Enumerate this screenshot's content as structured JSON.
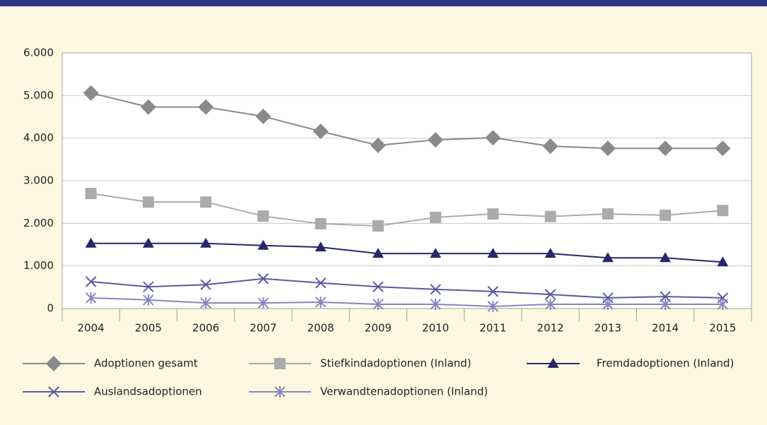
{
  "chart_data": {
    "type": "line",
    "categories": [
      "2004",
      "2005",
      "2006",
      "2007",
      "2008",
      "2009",
      "2010",
      "2011",
      "2012",
      "2013",
      "2014",
      "2015"
    ],
    "series": [
      {
        "name": "Adoptionen gesamt",
        "color": "#8a8a8a",
        "marker": "diamond",
        "values": [
          5060,
          4730,
          4730,
          4510,
          4160,
          3830,
          3960,
          4010,
          3810,
          3760,
          3760,
          3760
        ]
      },
      {
        "name": "Stiefkindadoptionen (Inland)",
        "color": "#ababab",
        "marker": "square",
        "values": [
          2700,
          2500,
          2500,
          2170,
          1990,
          1940,
          2140,
          2220,
          2160,
          2220,
          2190,
          2300
        ]
      },
      {
        "name": "Fremdadoptionen (Inland)",
        "color": "#27276b",
        "marker": "triangle",
        "values": [
          1530,
          1530,
          1530,
          1480,
          1440,
          1290,
          1290,
          1290,
          1290,
          1190,
          1190,
          1090
        ]
      },
      {
        "name": "Auslandsadoptionen",
        "color": "#5a5a9e",
        "marker": "cross",
        "values": [
          630,
          510,
          560,
          700,
          600,
          510,
          450,
          400,
          330,
          250,
          280,
          250
        ]
      },
      {
        "name": "Verwandtenadoptionen (Inland)",
        "color": "#8686bd",
        "marker": "asterisk",
        "values": [
          250,
          200,
          130,
          130,
          150,
          100,
          100,
          50,
          100,
          100,
          100,
          100
        ]
      }
    ],
    "ylim": [
      0,
      6000
    ],
    "yticks": [
      0,
      {
        "value": 1000,
        "label": "1.000"
      },
      {
        "value": 2000,
        "label": "2.000"
      },
      {
        "value": 3000,
        "label": "3.000"
      },
      {
        "value": 4000,
        "label": "4.000"
      },
      {
        "value": 5000,
        "label": "5.000"
      },
      {
        "value": 6000,
        "label": "6.000"
      }
    ],
    "grid": true,
    "legend": "bottom"
  }
}
